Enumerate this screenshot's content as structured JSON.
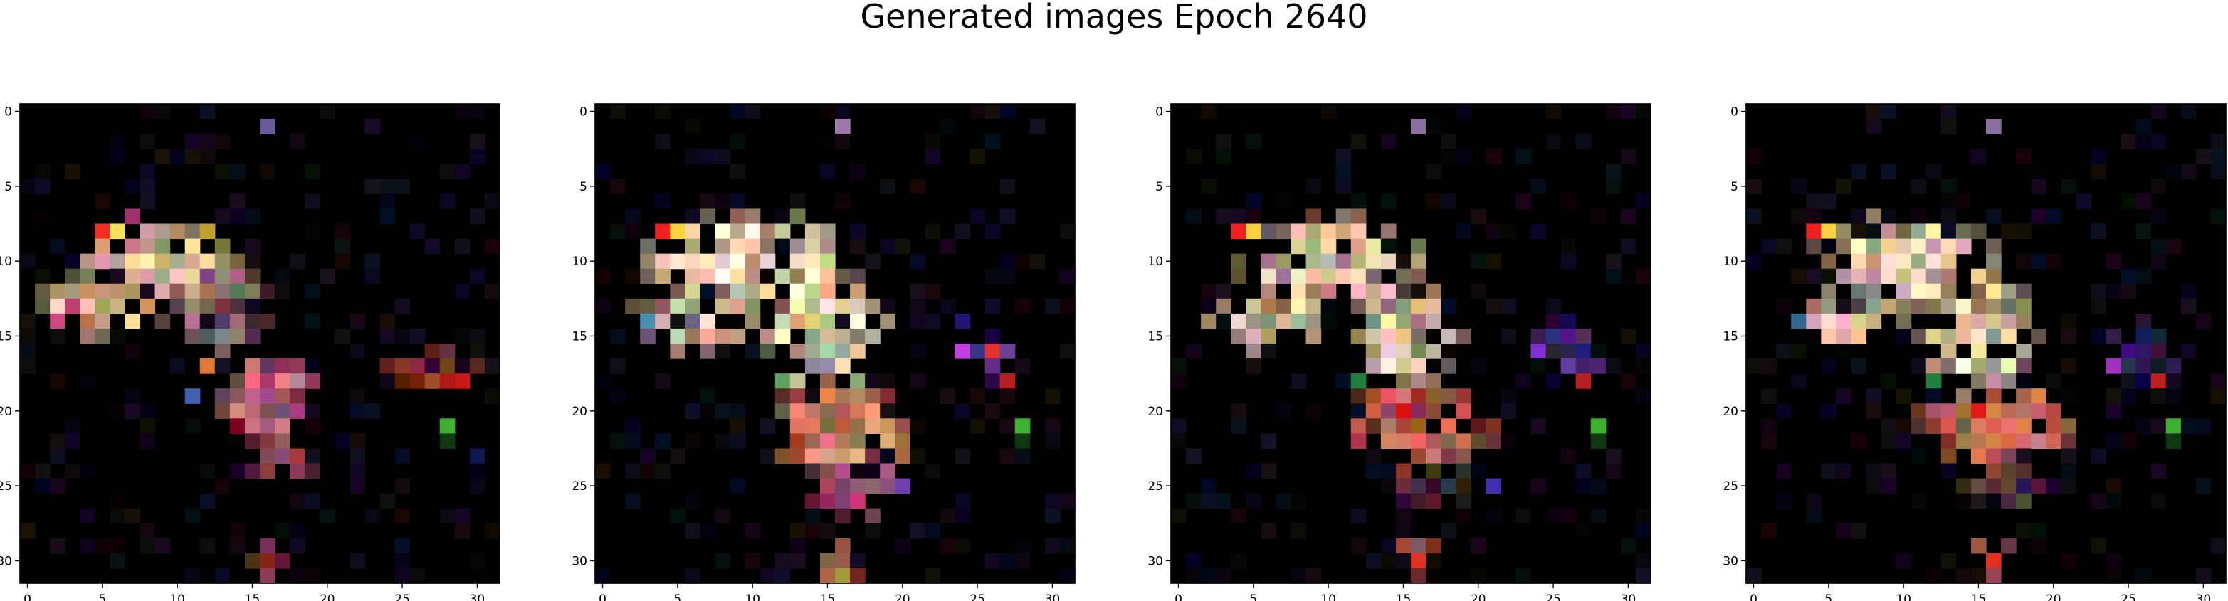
{
  "title": "Generated images Epoch 2640",
  "chart_data": [
    {
      "type": "heatmap",
      "title": "",
      "xlabel": "",
      "ylabel": "",
      "xlim": [
        -0.5,
        31.5
      ],
      "ylim": [
        31.5,
        -0.5
      ],
      "xticks": [
        "0",
        "5",
        "10",
        "15",
        "20",
        "25",
        "30"
      ],
      "yticks": [
        "0",
        "5",
        "10",
        "15",
        "20",
        "25",
        "30"
      ],
      "grid": false,
      "blobs": [
        {
          "cx": 9,
          "cy": 10,
          "rx": 5,
          "ry": 2.5,
          "color": "#f8d2a8",
          "label": "upper-left cluster"
        },
        {
          "cx": 5,
          "cy": 13,
          "rx": 4,
          "ry": 2,
          "color": "#f0c6a0",
          "label": "left cluster"
        },
        {
          "cx": 13,
          "cy": 13,
          "rx": 3,
          "ry": 3,
          "color": "#a07a80",
          "label": "centre cluster"
        },
        {
          "cx": 16,
          "cy": 19,
          "rx": 3,
          "ry": 3,
          "color": "#c86880",
          "label": "lower-centre cluster"
        },
        {
          "cx": 17,
          "cy": 23,
          "rx": 2,
          "ry": 2,
          "color": "#884058",
          "label": "bottom cluster"
        },
        {
          "cx": 27,
          "cy": 17,
          "rx": 3,
          "ry": 1.5,
          "color": "#8c2a2a",
          "label": "right cluster"
        },
        {
          "cx": 16,
          "cy": 30,
          "rx": 1,
          "ry": 1.5,
          "color": "#7a3040",
          "label": "bottom tail"
        }
      ],
      "points": [
        {
          "x": 16,
          "y": 1,
          "color": "#6a5a9a"
        },
        {
          "x": 5,
          "y": 8,
          "color": "#f03020"
        },
        {
          "x": 6,
          "y": 8,
          "color": "#f8e060"
        },
        {
          "x": 12,
          "y": 8,
          "color": "#c0a030"
        },
        {
          "x": 7,
          "y": 7,
          "color": "#a03070"
        },
        {
          "x": 3,
          "y": 13,
          "color": "#c04070"
        },
        {
          "x": 2,
          "y": 14,
          "color": "#d04880"
        },
        {
          "x": 12,
          "y": 17,
          "color": "#e07838"
        },
        {
          "x": 11,
          "y": 19,
          "color": "#4060b0"
        },
        {
          "x": 14,
          "y": 21,
          "color": "#800020"
        },
        {
          "x": 29,
          "y": 18,
          "color": "#c81818"
        },
        {
          "x": 28,
          "y": 18,
          "color": "#b01818"
        },
        {
          "x": 28,
          "y": 21,
          "color": "#40b030"
        },
        {
          "x": 28,
          "y": 22,
          "color": "#103810"
        },
        {
          "x": 30,
          "y": 23,
          "color": "#101850"
        }
      ]
    },
    {
      "type": "heatmap",
      "title": "",
      "xlabel": "",
      "ylabel": "",
      "xlim": [
        -0.5,
        31.5
      ],
      "ylim": [
        31.5,
        -0.5
      ],
      "xticks": [
        "0",
        "5",
        "10",
        "15",
        "20",
        "25",
        "30"
      ],
      "yticks": [
        "0",
        "5",
        "10",
        "15",
        "20",
        "25",
        "30"
      ],
      "grid": false,
      "blobs": [
        {
          "cx": 10,
          "cy": 10,
          "rx": 7,
          "ry": 3,
          "color": "#f8dcb8",
          "label": "upper cluster"
        },
        {
          "cx": 6,
          "cy": 14,
          "rx": 4,
          "ry": 2,
          "color": "#f0d0b0",
          "label": "left cluster"
        },
        {
          "cx": 15,
          "cy": 15,
          "rx": 4,
          "ry": 4,
          "color": "#f8e0b8",
          "label": "centre cluster"
        },
        {
          "cx": 16,
          "cy": 21,
          "rx": 5,
          "ry": 3,
          "color": "#e89070",
          "label": "lower cluster"
        },
        {
          "cx": 17,
          "cy": 25,
          "rx": 3,
          "ry": 2,
          "color": "#c05070",
          "label": "bottom cluster"
        },
        {
          "cx": 26,
          "cy": 16,
          "rx": 2,
          "ry": 2,
          "color": "#502888",
          "label": "right purple cluster"
        },
        {
          "cx": 16,
          "cy": 30,
          "rx": 1.5,
          "ry": 1.5,
          "color": "#e09060",
          "label": "bottom tail"
        }
      ],
      "points": [
        {
          "x": 16,
          "y": 1,
          "color": "#9a78a8"
        },
        {
          "x": 4,
          "y": 8,
          "color": "#f02020"
        },
        {
          "x": 5,
          "y": 8,
          "color": "#f8d040"
        },
        {
          "x": 3,
          "y": 14,
          "color": "#4890b0"
        },
        {
          "x": 5,
          "y": 14,
          "color": "#101010"
        },
        {
          "x": 24,
          "y": 16,
          "color": "#c040e0"
        },
        {
          "x": 24,
          "y": 14,
          "color": "#201870"
        },
        {
          "x": 26,
          "y": 16,
          "color": "#e03030"
        },
        {
          "x": 27,
          "y": 18,
          "color": "#b82020"
        },
        {
          "x": 28,
          "y": 21,
          "color": "#40b030"
        },
        {
          "x": 28,
          "y": 22,
          "color": "#103810"
        },
        {
          "x": 12,
          "y": 18,
          "color": "#60a060"
        },
        {
          "x": 20,
          "y": 25,
          "color": "#7040b0"
        }
      ]
    },
    {
      "type": "heatmap",
      "title": "",
      "xlabel": "",
      "ylabel": "",
      "xlim": [
        -0.5,
        31.5
      ],
      "ylim": [
        31.5,
        -0.5
      ],
      "xticks": [
        "0",
        "5",
        "10",
        "15",
        "20",
        "25",
        "30"
      ],
      "yticks": [
        "0",
        "5",
        "10",
        "15",
        "20",
        "25",
        "30"
      ],
      "grid": false,
      "blobs": [
        {
          "cx": 10,
          "cy": 10,
          "rx": 6,
          "ry": 3,
          "color": "#f4d0b0",
          "label": "upper cluster"
        },
        {
          "cx": 6,
          "cy": 14,
          "rx": 4,
          "ry": 2,
          "color": "#eecaa8",
          "label": "left cluster"
        },
        {
          "cx": 15,
          "cy": 15,
          "rx": 3.5,
          "ry": 4,
          "color": "#f0d0b0",
          "label": "centre cluster"
        },
        {
          "cx": 16,
          "cy": 21,
          "rx": 5,
          "ry": 3,
          "color": "#d86858",
          "label": "lower cluster"
        },
        {
          "cx": 17,
          "cy": 25,
          "rx": 3,
          "ry": 1.5,
          "color": "#502840",
          "label": "bottom cluster"
        },
        {
          "cx": 26,
          "cy": 16,
          "rx": 2.5,
          "ry": 2,
          "color": "#402080",
          "label": "right purple cluster"
        },
        {
          "cx": 16,
          "cy": 30,
          "rx": 1.5,
          "ry": 1.5,
          "color": "#c86858",
          "label": "bottom tail"
        }
      ],
      "points": [
        {
          "x": 16,
          "y": 1,
          "color": "#8a70a0"
        },
        {
          "x": 4,
          "y": 8,
          "color": "#f02020"
        },
        {
          "x": 5,
          "y": 8,
          "color": "#f8d040"
        },
        {
          "x": 15,
          "y": 20,
          "color": "#e01010"
        },
        {
          "x": 24,
          "y": 16,
          "color": "#8030d0"
        },
        {
          "x": 27,
          "y": 18,
          "color": "#b82020"
        },
        {
          "x": 28,
          "y": 21,
          "color": "#40b030"
        },
        {
          "x": 28,
          "y": 22,
          "color": "#103810"
        },
        {
          "x": 21,
          "y": 25,
          "color": "#4030b0"
        },
        {
          "x": 12,
          "y": 18,
          "color": "#208040"
        },
        {
          "x": 16,
          "y": 30,
          "color": "#e03020"
        }
      ]
    },
    {
      "type": "heatmap",
      "title": "",
      "xlabel": "",
      "ylabel": "",
      "xlim": [
        -0.5,
        31.5
      ],
      "ylim": [
        31.5,
        -0.5
      ],
      "xticks": [
        "0",
        "5",
        "10",
        "15",
        "20",
        "25",
        "30"
      ],
      "yticks": [
        "0",
        "5",
        "10",
        "15",
        "20",
        "25",
        "30"
      ],
      "grid": false,
      "blobs": [
        {
          "cx": 10,
          "cy": 10,
          "rx": 6,
          "ry": 3,
          "color": "#f6d4b2",
          "label": "upper cluster"
        },
        {
          "cx": 6,
          "cy": 14,
          "rx": 4,
          "ry": 2,
          "color": "#f0ceac",
          "label": "left cluster"
        },
        {
          "cx": 15,
          "cy": 15,
          "rx": 3.5,
          "ry": 4,
          "color": "#f4d6b4",
          "label": "centre cluster"
        },
        {
          "cx": 16,
          "cy": 21,
          "rx": 5,
          "ry": 3,
          "color": "#e07a68",
          "label": "lower cluster"
        },
        {
          "cx": 17,
          "cy": 25,
          "rx": 3,
          "ry": 1.5,
          "color": "#583050",
          "label": "bottom cluster"
        },
        {
          "cx": 26,
          "cy": 16,
          "rx": 2.5,
          "ry": 2,
          "color": "#381c70",
          "label": "right purple cluster"
        },
        {
          "cx": 16,
          "cy": 30,
          "rx": 1.5,
          "ry": 1.5,
          "color": "#d07060",
          "label": "bottom tail"
        }
      ],
      "points": [
        {
          "x": 16,
          "y": 1,
          "color": "#8a70a0"
        },
        {
          "x": 4,
          "y": 8,
          "color": "#f02020"
        },
        {
          "x": 5,
          "y": 8,
          "color": "#f8d040"
        },
        {
          "x": 3,
          "y": 14,
          "color": "#306890"
        },
        {
          "x": 15,
          "y": 20,
          "color": "#e01818"
        },
        {
          "x": 24,
          "y": 17,
          "color": "#a030c0"
        },
        {
          "x": 27,
          "y": 18,
          "color": "#c02020"
        },
        {
          "x": 28,
          "y": 21,
          "color": "#40b030"
        },
        {
          "x": 28,
          "y": 22,
          "color": "#103810"
        },
        {
          "x": 12,
          "y": 18,
          "color": "#208040"
        },
        {
          "x": 16,
          "y": 30,
          "color": "#e03020"
        }
      ]
    }
  ]
}
